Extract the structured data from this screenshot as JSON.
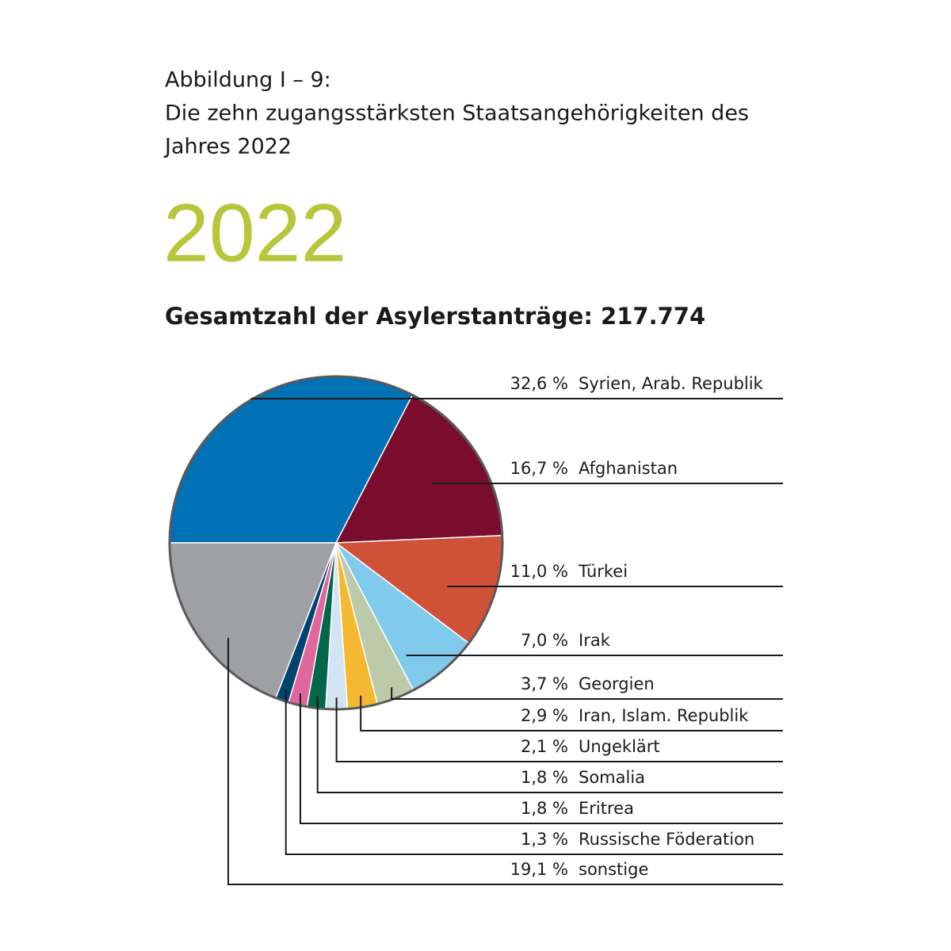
{
  "chart_data": {
    "type": "pie",
    "title": [
      "Abbildung I – 9:",
      "Die zehn zugangsstärksten Staatsangehörigkeiten des",
      "Jahres 2022"
    ],
    "year": "2022",
    "subtitle": "Gesamtzahl der Asylerstanträge: 217.774",
    "categories": [
      "Syrien, Arab. Republik",
      "Afghanistan",
      "Türkei",
      "Irak",
      "Georgien",
      "Iran, Islam. Republik",
      "Ungeklärt",
      "Somalia",
      "Eritrea",
      "Russische Föderation",
      "sonstige"
    ],
    "values": [
      32.6,
      16.7,
      11.0,
      7.0,
      3.7,
      2.9,
      2.1,
      1.8,
      1.8,
      1.3,
      19.1
    ],
    "value_labels": [
      "32,6 %",
      "16,7 %",
      "11,0 %",
      "7,0 %",
      "3,7 %",
      "2,9 %",
      "2,1 %",
      "1,8 %",
      "1,8 %",
      "1,3 %",
      "19,1 %"
    ],
    "colors": [
      "#0071b5",
      "#7a0d2d",
      "#cf5238",
      "#80cbeb",
      "#bccaaa",
      "#f4b931",
      "#d3e5f2",
      "#00674a",
      "#e0679b",
      "#00436f",
      "#9ea0a4"
    ]
  }
}
